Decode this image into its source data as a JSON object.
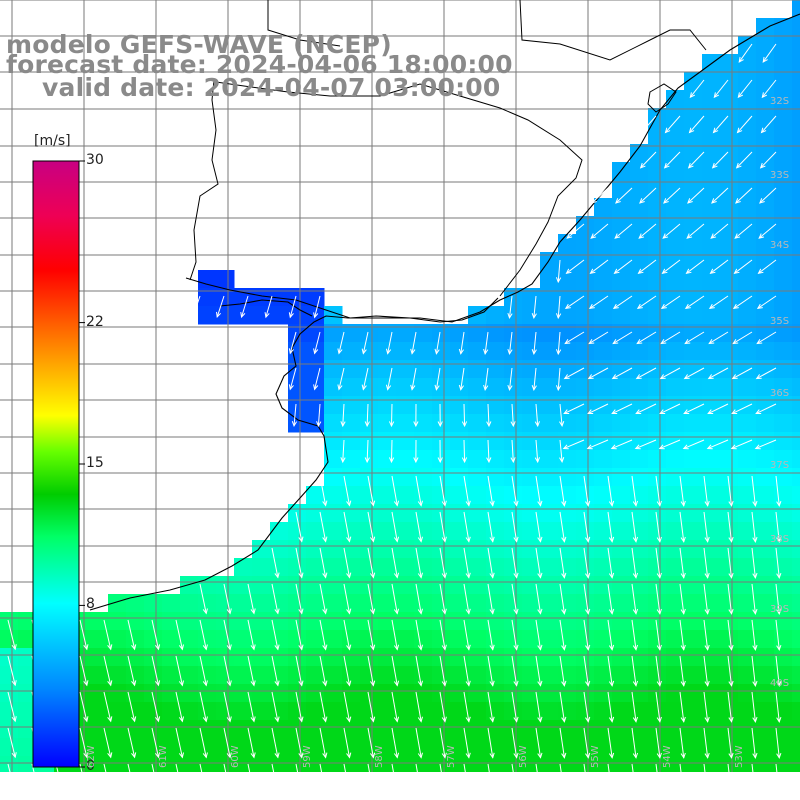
{
  "title": {
    "line1": "modelo GEFS-WAVE (NCEP)",
    "line2": "forecast date: 2024-04-06 18:00:00",
    "line3": "valid date: 2024-04-07 03:00:00"
  },
  "colorbar": {
    "unit": "[m/s]",
    "ticks": [
      "30",
      "22",
      "15",
      "8",
      "0"
    ],
    "tick_values": [
      30,
      22,
      15,
      8,
      0
    ],
    "colors": [
      "#0000ff",
      "#00ccff",
      "#00ffff",
      "#00ff66",
      "#00cc00",
      "#66ff00",
      "#ffff00",
      "#ffaa00",
      "#ff5500",
      "#ff0000",
      "#ee0055",
      "#c80082"
    ]
  },
  "lat_labels": [
    "32S",
    "33S",
    "34S",
    "35S",
    "36S",
    "37S",
    "38S",
    "39S",
    "40S"
  ],
  "lon_labels": [
    "62W",
    "61W",
    "60W",
    "59W",
    "58W",
    "57W",
    "56W",
    "55W",
    "54W",
    "53W"
  ],
  "colors": {
    "background": "#ffffff",
    "title_text": "#8a8a8a",
    "grid": "#7a7a7a",
    "coast": "#000000",
    "arrow": "#ffffff"
  }
}
